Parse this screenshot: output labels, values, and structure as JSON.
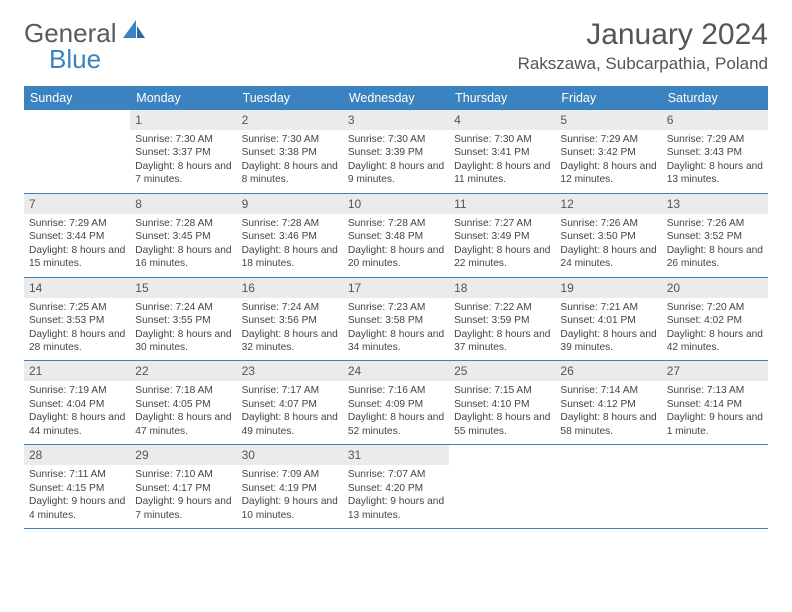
{
  "logo": {
    "text_a": "General",
    "text_b": "Blue"
  },
  "title": "January 2024",
  "location": "Rakszawa, Subcarpathia, Poland",
  "colors": {
    "accent": "#3b83c0",
    "header_bg": "#3b83c0",
    "header_fg": "#ffffff",
    "daynum_bg": "#ebebeb",
    "text": "#555555",
    "body_text": "#444444"
  },
  "weekdays": [
    "Sunday",
    "Monday",
    "Tuesday",
    "Wednesday",
    "Thursday",
    "Friday",
    "Saturday"
  ],
  "weeks": [
    [
      {
        "n": "",
        "sunrise": "",
        "sunset": "",
        "daylight": ""
      },
      {
        "n": "1",
        "sunrise": "7:30 AM",
        "sunset": "3:37 PM",
        "daylight": "8 hours and 7 minutes."
      },
      {
        "n": "2",
        "sunrise": "7:30 AM",
        "sunset": "3:38 PM",
        "daylight": "8 hours and 8 minutes."
      },
      {
        "n": "3",
        "sunrise": "7:30 AM",
        "sunset": "3:39 PM",
        "daylight": "8 hours and 9 minutes."
      },
      {
        "n": "4",
        "sunrise": "7:30 AM",
        "sunset": "3:41 PM",
        "daylight": "8 hours and 11 minutes."
      },
      {
        "n": "5",
        "sunrise": "7:29 AM",
        "sunset": "3:42 PM",
        "daylight": "8 hours and 12 minutes."
      },
      {
        "n": "6",
        "sunrise": "7:29 AM",
        "sunset": "3:43 PM",
        "daylight": "8 hours and 13 minutes."
      }
    ],
    [
      {
        "n": "7",
        "sunrise": "7:29 AM",
        "sunset": "3:44 PM",
        "daylight": "8 hours and 15 minutes."
      },
      {
        "n": "8",
        "sunrise": "7:28 AM",
        "sunset": "3:45 PM",
        "daylight": "8 hours and 16 minutes."
      },
      {
        "n": "9",
        "sunrise": "7:28 AM",
        "sunset": "3:46 PM",
        "daylight": "8 hours and 18 minutes."
      },
      {
        "n": "10",
        "sunrise": "7:28 AM",
        "sunset": "3:48 PM",
        "daylight": "8 hours and 20 minutes."
      },
      {
        "n": "11",
        "sunrise": "7:27 AM",
        "sunset": "3:49 PM",
        "daylight": "8 hours and 22 minutes."
      },
      {
        "n": "12",
        "sunrise": "7:26 AM",
        "sunset": "3:50 PM",
        "daylight": "8 hours and 24 minutes."
      },
      {
        "n": "13",
        "sunrise": "7:26 AM",
        "sunset": "3:52 PM",
        "daylight": "8 hours and 26 minutes."
      }
    ],
    [
      {
        "n": "14",
        "sunrise": "7:25 AM",
        "sunset": "3:53 PM",
        "daylight": "8 hours and 28 minutes."
      },
      {
        "n": "15",
        "sunrise": "7:24 AM",
        "sunset": "3:55 PM",
        "daylight": "8 hours and 30 minutes."
      },
      {
        "n": "16",
        "sunrise": "7:24 AM",
        "sunset": "3:56 PM",
        "daylight": "8 hours and 32 minutes."
      },
      {
        "n": "17",
        "sunrise": "7:23 AM",
        "sunset": "3:58 PM",
        "daylight": "8 hours and 34 minutes."
      },
      {
        "n": "18",
        "sunrise": "7:22 AM",
        "sunset": "3:59 PM",
        "daylight": "8 hours and 37 minutes."
      },
      {
        "n": "19",
        "sunrise": "7:21 AM",
        "sunset": "4:01 PM",
        "daylight": "8 hours and 39 minutes."
      },
      {
        "n": "20",
        "sunrise": "7:20 AM",
        "sunset": "4:02 PM",
        "daylight": "8 hours and 42 minutes."
      }
    ],
    [
      {
        "n": "21",
        "sunrise": "7:19 AM",
        "sunset": "4:04 PM",
        "daylight": "8 hours and 44 minutes."
      },
      {
        "n": "22",
        "sunrise": "7:18 AM",
        "sunset": "4:05 PM",
        "daylight": "8 hours and 47 minutes."
      },
      {
        "n": "23",
        "sunrise": "7:17 AM",
        "sunset": "4:07 PM",
        "daylight": "8 hours and 49 minutes."
      },
      {
        "n": "24",
        "sunrise": "7:16 AM",
        "sunset": "4:09 PM",
        "daylight": "8 hours and 52 minutes."
      },
      {
        "n": "25",
        "sunrise": "7:15 AM",
        "sunset": "4:10 PM",
        "daylight": "8 hours and 55 minutes."
      },
      {
        "n": "26",
        "sunrise": "7:14 AM",
        "sunset": "4:12 PM",
        "daylight": "8 hours and 58 minutes."
      },
      {
        "n": "27",
        "sunrise": "7:13 AM",
        "sunset": "4:14 PM",
        "daylight": "9 hours and 1 minute."
      }
    ],
    [
      {
        "n": "28",
        "sunrise": "7:11 AM",
        "sunset": "4:15 PM",
        "daylight": "9 hours and 4 minutes."
      },
      {
        "n": "29",
        "sunrise": "7:10 AM",
        "sunset": "4:17 PM",
        "daylight": "9 hours and 7 minutes."
      },
      {
        "n": "30",
        "sunrise": "7:09 AM",
        "sunset": "4:19 PM",
        "daylight": "9 hours and 10 minutes."
      },
      {
        "n": "31",
        "sunrise": "7:07 AM",
        "sunset": "4:20 PM",
        "daylight": "9 hours and 13 minutes."
      },
      {
        "n": "",
        "sunrise": "",
        "sunset": "",
        "daylight": ""
      },
      {
        "n": "",
        "sunrise": "",
        "sunset": "",
        "daylight": ""
      },
      {
        "n": "",
        "sunrise": "",
        "sunset": "",
        "daylight": ""
      }
    ]
  ],
  "labels": {
    "sunrise": "Sunrise:",
    "sunset": "Sunset:",
    "daylight": "Daylight:"
  }
}
